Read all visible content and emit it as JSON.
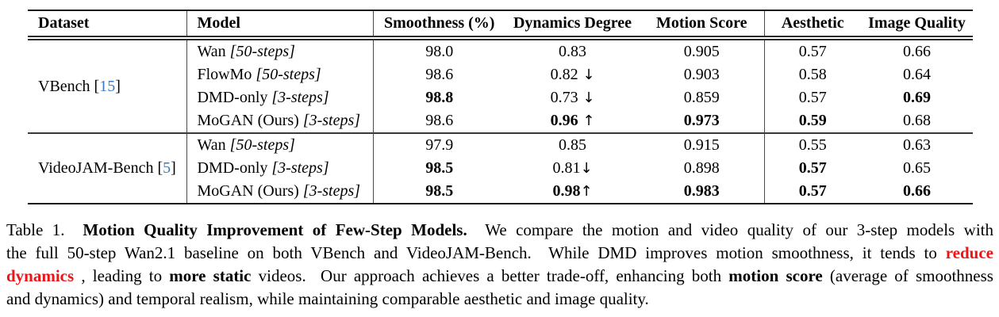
{
  "colors": {
    "citation_blue": "#3b78c3",
    "emphasis_red": "#ee1416",
    "rule_black": "#1a1a1a",
    "text_black": "#000000"
  },
  "table": {
    "columns": [
      {
        "label": "Dataset",
        "align": "left"
      },
      {
        "label": "Model",
        "align": "left"
      },
      {
        "label": "Smoothness (%)",
        "align": "center"
      },
      {
        "label": "Dynamics Degree",
        "align": "center"
      },
      {
        "label": "Motion Score",
        "align": "center"
      },
      {
        "label": "Aesthetic",
        "align": "center"
      },
      {
        "label": "Image Quality",
        "align": "center"
      }
    ],
    "groups": [
      {
        "dataset": {
          "name": "VBench",
          "cite": "15"
        },
        "rows": [
          {
            "model": {
              "name": "Wan",
              "variant": "[50-steps]"
            },
            "values": [
              {
                "t": "98.0",
                "b": false,
                "arrow": ""
              },
              {
                "t": "0.83",
                "b": false,
                "arrow": ""
              },
              {
                "t": "0.905",
                "b": false,
                "arrow": ""
              },
              {
                "t": "0.57",
                "b": false,
                "arrow": ""
              },
              {
                "t": "0.66",
                "b": false,
                "arrow": ""
              }
            ]
          },
          {
            "model": {
              "name": "FlowMo",
              "variant": "[50-steps]"
            },
            "values": [
              {
                "t": "98.6",
                "b": false,
                "arrow": ""
              },
              {
                "t": "0.82",
                "b": false,
                "arrow": " ↓"
              },
              {
                "t": "0.903",
                "b": false,
                "arrow": ""
              },
              {
                "t": "0.58",
                "b": false,
                "arrow": ""
              },
              {
                "t": "0.64",
                "b": false,
                "arrow": ""
              }
            ]
          },
          {
            "model": {
              "name": "DMD-only",
              "variant": "[3-steps]"
            },
            "values": [
              {
                "t": "98.8",
                "b": true,
                "arrow": ""
              },
              {
                "t": "0.73",
                "b": false,
                "arrow": " ↓"
              },
              {
                "t": "0.859",
                "b": false,
                "arrow": ""
              },
              {
                "t": "0.57",
                "b": false,
                "arrow": ""
              },
              {
                "t": "0.69",
                "b": true,
                "arrow": ""
              }
            ]
          },
          {
            "model": {
              "name": "MoGAN (Ours)",
              "variant": "[3-steps]"
            },
            "values": [
              {
                "t": "98.6",
                "b": false,
                "arrow": ""
              },
              {
                "t": "0.96",
                "b": true,
                "arrow": " ↑"
              },
              {
                "t": "0.973",
                "b": true,
                "arrow": ""
              },
              {
                "t": "0.59",
                "b": true,
                "arrow": ""
              },
              {
                "t": "0.68",
                "b": false,
                "arrow": ""
              }
            ]
          }
        ]
      },
      {
        "dataset": {
          "name": "VideoJAM-Bench",
          "cite": "5"
        },
        "rows": [
          {
            "model": {
              "name": "Wan",
              "variant": "[50-steps]"
            },
            "values": [
              {
                "t": "97.9",
                "b": false,
                "arrow": ""
              },
              {
                "t": "0.85",
                "b": false,
                "arrow": ""
              },
              {
                "t": "0.915",
                "b": false,
                "arrow": ""
              },
              {
                "t": "0.55",
                "b": false,
                "arrow": ""
              },
              {
                "t": "0.63",
                "b": false,
                "arrow": ""
              }
            ]
          },
          {
            "model": {
              "name": "DMD-only",
              "variant": "[3-steps]"
            },
            "values": [
              {
                "t": "98.5",
                "b": true,
                "arrow": ""
              },
              {
                "t": "0.81",
                "b": false,
                "arrow": "↓"
              },
              {
                "t": "0.898",
                "b": false,
                "arrow": ""
              },
              {
                "t": "0.57",
                "b": true,
                "arrow": ""
              },
              {
                "t": "0.65",
                "b": false,
                "arrow": ""
              }
            ]
          },
          {
            "model": {
              "name": "MoGAN (Ours)",
              "variant": "[3-steps]"
            },
            "values": [
              {
                "t": "98.5",
                "b": true,
                "arrow": ""
              },
              {
                "t": "0.98",
                "b": true,
                "arrow": "↑"
              },
              {
                "t": "0.983",
                "b": true,
                "arrow": ""
              },
              {
                "t": "0.57",
                "b": true,
                "arrow": ""
              },
              {
                "t": "0.66",
                "b": true,
                "arrow": ""
              }
            ]
          }
        ]
      }
    ]
  },
  "caption": {
    "lines": [
      {
        "justify": true,
        "segments": [
          {
            "t": "Table 1.  ",
            "s": "n"
          },
          {
            "t": "Motion Quality Improvement of Few-Step Models.",
            "s": "b"
          },
          {
            "t": "  We compare the motion and video quality of our 3-step models with",
            "s": "n"
          }
        ]
      },
      {
        "justify": true,
        "segments": [
          {
            "t": "the full 50-step Wan2.1 baseline on both VBench and VideoJAM-Bench.  While DMD improves motion smoothness, it tends to ",
            "s": "n"
          },
          {
            "t": "reduce",
            "s": "rb"
          }
        ]
      },
      {
        "justify": true,
        "segments": [
          {
            "t": "dynamics",
            "s": "rb"
          },
          {
            "t": " , leading to ",
            "s": "n"
          },
          {
            "t": "more static",
            "s": "b"
          },
          {
            "t": " videos.  Our approach achieves a better trade-off, enhancing both ",
            "s": "n"
          },
          {
            "t": "motion score",
            "s": "b"
          },
          {
            "t": " (average of smoothness",
            "s": "n"
          }
        ]
      },
      {
        "justify": false,
        "segments": [
          {
            "t": "and dynamics) and temporal realism, while maintaining comparable aesthetic and image quality.",
            "s": "n"
          }
        ]
      }
    ]
  }
}
